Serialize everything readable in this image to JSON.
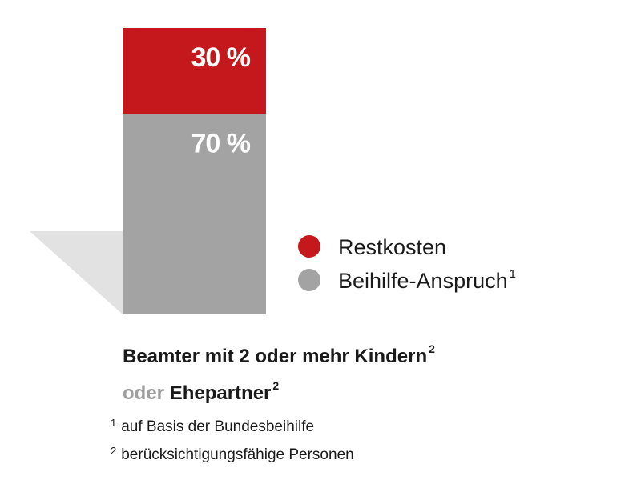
{
  "chart_data": {
    "type": "bar",
    "stacked": true,
    "categories": [
      "Beamter mit 2 oder mehr Kindern oder Ehepartner"
    ],
    "series": [
      {
        "name": "Beihilfe-Anspruch",
        "values": [
          70
        ],
        "label": "70 %",
        "color": "#a3a3a3"
      },
      {
        "name": "Restkosten",
        "values": [
          30
        ],
        "label": "30 %",
        "color": "#c4181c"
      }
    ],
    "ylim": [
      0,
      100
    ],
    "grid": false
  },
  "legend": {
    "items": [
      {
        "label": "Restkosten",
        "sup": "",
        "color": "#c4181c"
      },
      {
        "label": "Beihilfe-Anspruch",
        "sup": "1",
        "color": "#a3a3a3"
      }
    ]
  },
  "caption": {
    "line1": "Beamter mit 2 oder mehr Kindern",
    "line1_sup": "2",
    "line2_muted": "oder",
    "line2_bold": "Ehepartner",
    "line2_sup": "2"
  },
  "footnotes": [
    {
      "num": "1",
      "text": "auf Basis der Bundesbeihilfe"
    },
    {
      "num": "2",
      "text": "berücksichtigungsfähige Personen"
    }
  ],
  "colors": {
    "shadow": "#e2e2e2",
    "text": "#1a1a1a",
    "muted": "#9e9e9e"
  }
}
